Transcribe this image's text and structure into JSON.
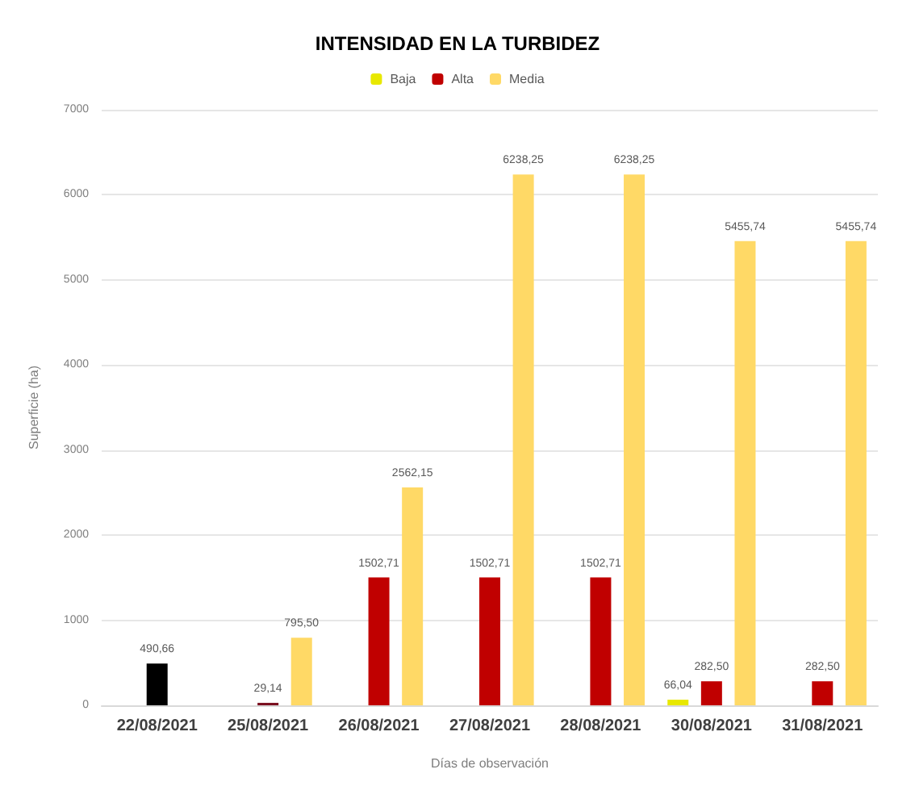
{
  "chart_data": {
    "type": "bar",
    "title": "INTENSIDAD EN LA TURBIDEZ",
    "xlabel": "Días de observación",
    "ylabel": "Superficie (ha)",
    "categories": [
      "22/08/2021",
      "25/08/2021",
      "26/08/2021",
      "27/08/2021",
      "28/08/2021",
      "30/08/2021",
      "31/08/2021"
    ],
    "series": [
      {
        "name": "Baja",
        "color": "#e8e800",
        "values": [
          null,
          null,
          null,
          null,
          null,
          66.04,
          null
        ],
        "value_labels": [
          null,
          null,
          null,
          null,
          null,
          "66,04",
          null
        ]
      },
      {
        "name": "Alta",
        "color": "#c00000",
        "colors": [
          "#000000",
          "#7b1020",
          "#c00000",
          "#c00000",
          "#c00000",
          "#c00000",
          "#c00000"
        ],
        "values": [
          490.66,
          29.14,
          1502.71,
          1502.71,
          1502.71,
          282.5,
          282.5
        ],
        "value_labels": [
          "490,66",
          "29,14",
          "1502,71",
          "1502,71",
          "1502,71",
          "282,50",
          "282,50"
        ]
      },
      {
        "name": "Media",
        "color": "#ffd966",
        "values": [
          null,
          795.5,
          2562.15,
          6238.25,
          6238.25,
          5455.74,
          5455.74
        ],
        "value_labels": [
          null,
          "795,50",
          "2562,15",
          "6238,25",
          "6238,25",
          "5455,74",
          "5455,74"
        ]
      }
    ],
    "ylim": [
      0,
      7000
    ],
    "yticks": [
      0,
      1000,
      2000,
      3000,
      4000,
      5000,
      6000,
      7000
    ],
    "grid": "y",
    "legend": "top"
  }
}
